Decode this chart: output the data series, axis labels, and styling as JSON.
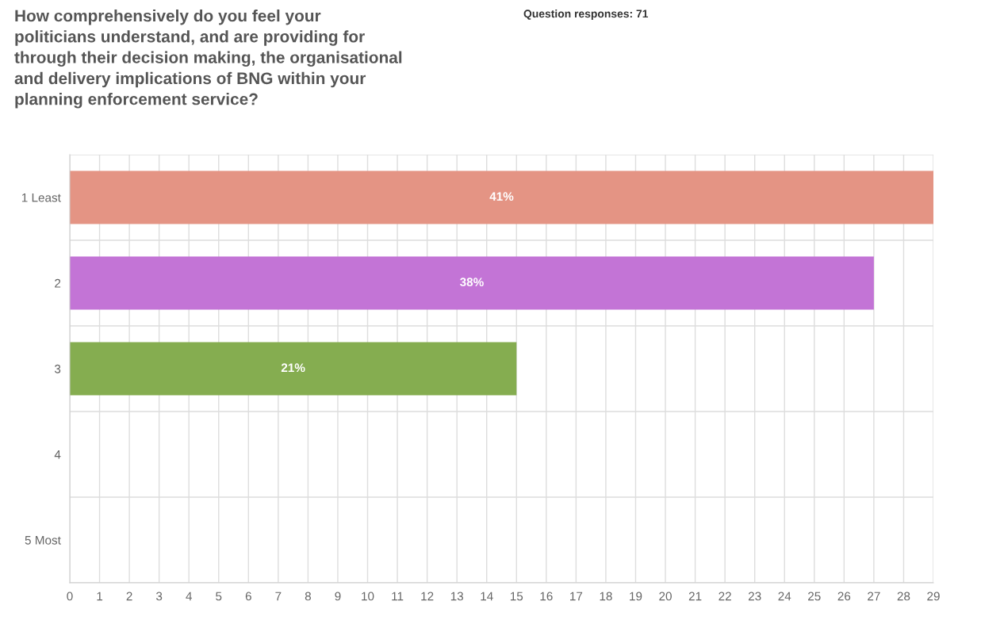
{
  "chart_data": {
    "type": "bar",
    "orientation": "horizontal",
    "title": "How comprehensively do you feel your\npoliticians understand, and are providing for\nthrough their decision making, the organisational\nand delivery implications of BNG within your\nplanning enforcement service?",
    "subtitle": "Question responses: 71",
    "categories": [
      "1 Least",
      "2",
      "3",
      "4",
      "5 Most"
    ],
    "values": [
      29,
      27,
      15,
      0,
      0
    ],
    "colors": [
      "#e49484",
      "#c374d6",
      "#85ad50",
      "#cccccc",
      "#cccccc"
    ],
    "annotations": [
      "41%",
      "38%",
      "21%"
    ],
    "xlim": [
      0,
      29
    ],
    "xticks": [
      0,
      1,
      2,
      3,
      4,
      5,
      6,
      7,
      8,
      9,
      10,
      11,
      12,
      13,
      14,
      15,
      16,
      17,
      18,
      19,
      20,
      21,
      22,
      23,
      24,
      25,
      26,
      27,
      28,
      29
    ],
    "grid": true,
    "legend": false
  }
}
